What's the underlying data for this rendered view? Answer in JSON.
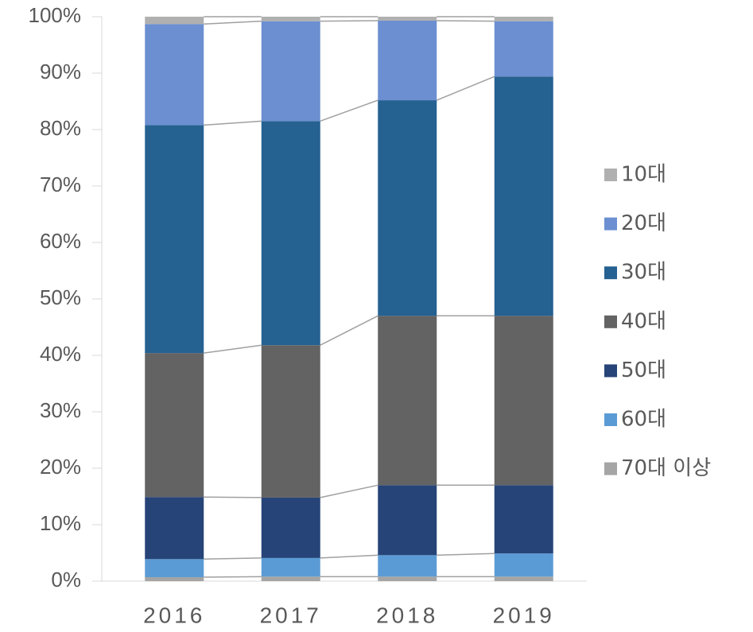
{
  "chart_data": {
    "type": "stacked_bar",
    "categories": [
      "2016",
      "2017",
      "2018",
      "2019"
    ],
    "series": [
      {
        "name": "10대",
        "color": "#b0b0b0",
        "values": [
          1.3,
          0.8,
          0.7,
          0.8
        ]
      },
      {
        "name": "20대",
        "color": "#6b8fd1",
        "values": [
          17.9,
          17.7,
          14.1,
          9.8
        ]
      },
      {
        "name": "30대",
        "color": "#256191",
        "values": [
          40.4,
          39.7,
          38.2,
          42.4
        ]
      },
      {
        "name": "40대",
        "color": "#636363",
        "values": [
          25.5,
          27.0,
          30.0,
          30.0
        ]
      },
      {
        "name": "50대",
        "color": "#264478",
        "values": [
          11.0,
          10.7,
          12.4,
          12.1
        ]
      },
      {
        "name": "60대",
        "color": "#5b9bd5",
        "values": [
          3.2,
          3.3,
          3.8,
          4.1
        ]
      },
      {
        "name": "70대 이상",
        "color": "#a5a5a5",
        "values": [
          0.7,
          0.8,
          0.8,
          0.8
        ]
      }
    ],
    "ylim": [
      0,
      100
    ],
    "yticks": [
      {
        "value": 0,
        "label": "0%"
      },
      {
        "value": 10,
        "label": "10%"
      },
      {
        "value": 20,
        "label": "20%"
      },
      {
        "value": 30,
        "label": "30%"
      },
      {
        "value": 40,
        "label": "40%"
      },
      {
        "value": 50,
        "label": "50%"
      },
      {
        "value": 60,
        "label": "60%"
      },
      {
        "value": 70,
        "label": "70%"
      },
      {
        "value": 80,
        "label": "80%"
      },
      {
        "value": 90,
        "label": "90%"
      },
      {
        "value": 100,
        "label": "100%"
      }
    ],
    "legend": "right"
  }
}
